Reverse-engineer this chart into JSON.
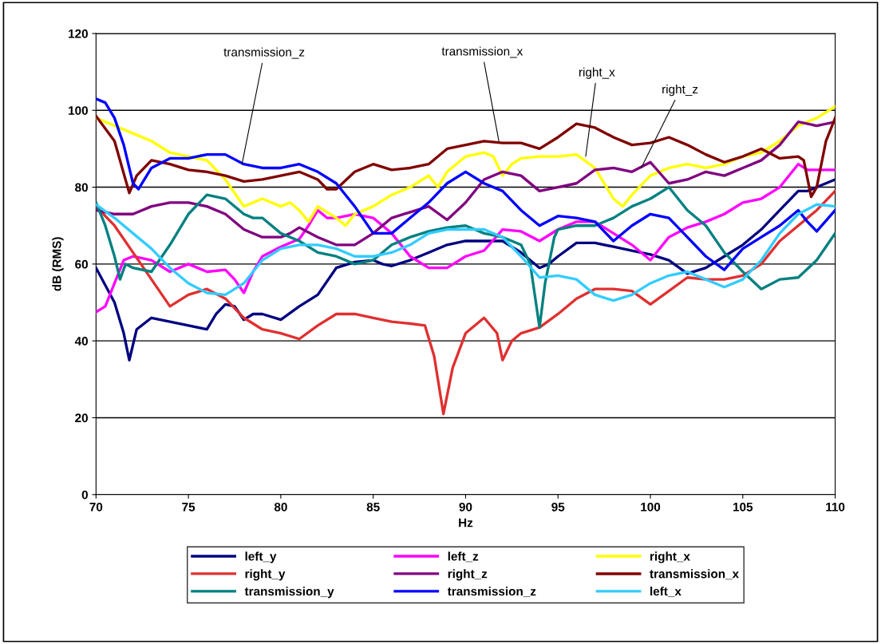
{
  "chart_data": {
    "type": "line",
    "xlabel": "Hz",
    "ylabel": "dB (RMS)",
    "xlim": [
      70,
      110
    ],
    "xticks": [
      70,
      75,
      80,
      85,
      90,
      95,
      100,
      105,
      110
    ],
    "ylim": [
      0,
      120
    ],
    "yticks": [
      0,
      20,
      40,
      60,
      80,
      100,
      120
    ],
    "grid": "y",
    "legend": "bottom",
    "marker": "none",
    "line_style": "solid",
    "annotations": [
      {
        "text": "transmission_z",
        "x": 77.9,
        "y": 86
      },
      {
        "text": "transmission_x",
        "x": 91.8,
        "y": 92
      },
      {
        "text": "right_x",
        "x": 96.5,
        "y": 88
      },
      {
        "text": "right_z",
        "x": 99.5,
        "y": 85
      }
    ],
    "series": [
      {
        "name": "left_y",
        "color": "#000080",
        "x": [
          70,
          71,
          71.5,
          71.8,
          72.2,
          73,
          74,
          75,
          76,
          76.5,
          77,
          77.5,
          78,
          78.5,
          79,
          80,
          81,
          82,
          83,
          84,
          85,
          85.5,
          86,
          87,
          88,
          89,
          90,
          91,
          92,
          93,
          94,
          94.5,
          95,
          96,
          97,
          98,
          99,
          100,
          101,
          102,
          103,
          104,
          105,
          106,
          107,
          108,
          108.5,
          109,
          110
        ],
        "values": [
          59,
          50,
          42,
          35,
          43,
          46,
          45,
          44,
          43,
          47,
          49.5,
          49,
          45.5,
          47,
          47,
          45.5,
          49,
          52,
          59,
          60.5,
          61,
          60,
          59.5,
          61,
          63,
          65,
          66,
          66,
          66,
          63,
          59,
          60,
          62,
          65.5,
          65.5,
          64.5,
          63.5,
          62.5,
          61,
          57.5,
          59,
          62,
          65,
          69,
          74,
          79,
          79,
          80,
          82
        ]
      },
      {
        "name": "left_z",
        "color": "#ff00ff",
        "x": [
          70,
          70.5,
          71,
          71.5,
          72,
          73,
          74,
          75,
          76,
          77,
          77.5,
          78,
          78.5,
          79,
          80,
          81,
          81.5,
          82,
          82.5,
          83,
          84,
          85,
          86,
          87,
          88,
          89,
          90,
          91,
          92,
          93,
          94,
          95,
          96,
          97,
          98,
          99,
          100,
          101,
          102,
          103,
          104,
          105,
          106,
          107,
          108,
          108.5,
          110
        ],
        "values": [
          47.5,
          49,
          55,
          61,
          62,
          61,
          58,
          60,
          58,
          58.5,
          56,
          52.5,
          58,
          62,
          64.5,
          66.5,
          70,
          74,
          72,
          72,
          73,
          72,
          68,
          62,
          59,
          59,
          62,
          63.5,
          69,
          68.5,
          66,
          69,
          71,
          71,
          68,
          65,
          61,
          67,
          69.5,
          71,
          73,
          76,
          77,
          80,
          86,
          84.5,
          84.5
        ]
      },
      {
        "name": "right_x",
        "color": "#ffff00",
        "x": [
          70,
          71,
          72,
          73,
          74,
          75,
          76,
          77,
          78,
          79,
          80,
          80.5,
          81,
          81.5,
          82,
          83,
          83.5,
          84,
          85,
          86,
          87,
          88,
          88.5,
          89,
          90,
          91,
          91.5,
          92,
          92.5,
          93,
          94,
          95,
          96,
          97,
          98,
          98.5,
          99,
          100,
          101,
          102,
          103,
          104,
          105,
          106,
          107,
          108,
          109,
          110
        ],
        "values": [
          98,
          96,
          94,
          92,
          89,
          88,
          87,
          82,
          75,
          77,
          75,
          76,
          74,
          71,
          75,
          72,
          70,
          73,
          75,
          78,
          80,
          83,
          80,
          84,
          88,
          89,
          88,
          83,
          86,
          87.5,
          88,
          88,
          88.5,
          85,
          77,
          75,
          78,
          83,
          85,
          86,
          85,
          86,
          88,
          89,
          92,
          96,
          98,
          101
        ]
      },
      {
        "name": "right_y",
        "color": "#e03030",
        "x": [
          70,
          71,
          72,
          73,
          74,
          75,
          76,
          77,
          78,
          79,
          80,
          81,
          82,
          83,
          84,
          85,
          86,
          87,
          87.8,
          88.3,
          88.8,
          89.3,
          90,
          91,
          91.7,
          92,
          92.5,
          93,
          94,
          95,
          96,
          97,
          98,
          99,
          100,
          101,
          102,
          103,
          104,
          105,
          106,
          107,
          108,
          109,
          110
        ],
        "values": [
          75,
          70,
          63,
          56,
          49,
          52,
          53.5,
          51,
          46,
          43,
          42,
          40.5,
          44,
          47,
          47,
          46,
          45,
          44.5,
          44,
          36,
          21,
          33,
          42,
          46,
          42,
          35,
          40,
          42,
          43.5,
          47,
          51,
          53.5,
          53.5,
          53,
          49.5,
          53,
          56.5,
          56,
          56,
          57,
          60,
          66,
          70,
          74,
          79
        ]
      },
      {
        "name": "right_z",
        "color": "#800080",
        "x": [
          70,
          71,
          72,
          73,
          74,
          75,
          76,
          77,
          78,
          79,
          80,
          80.5,
          81,
          82,
          83,
          84,
          85,
          86,
          87,
          88,
          89,
          90,
          91,
          92,
          93,
          94,
          95,
          96,
          97,
          98,
          99,
          100,
          101,
          102,
          103,
          104,
          105,
          106,
          107,
          108,
          109,
          110
        ],
        "values": [
          74,
          73,
          73,
          75,
          76,
          76,
          75,
          73,
          69,
          67,
          67,
          68,
          69.5,
          67,
          65,
          65,
          68,
          72,
          73.5,
          75,
          71.5,
          76,
          82,
          84,
          83,
          79,
          80,
          81,
          84.5,
          85,
          84,
          86.5,
          81,
          82,
          84,
          83,
          85,
          87,
          91,
          97,
          96,
          97
        ]
      },
      {
        "name": "transmission_x",
        "color": "#800000",
        "x": [
          70,
          71,
          71.8,
          72.2,
          73,
          74,
          75,
          76,
          77,
          78,
          79,
          80,
          81,
          82,
          82.5,
          83,
          84,
          85,
          86,
          87,
          88,
          89,
          90,
          91,
          92,
          93,
          94,
          95,
          96,
          97,
          98,
          99,
          100,
          101,
          102,
          103,
          104,
          105,
          106,
          107,
          108,
          108.3,
          108.7,
          109,
          109.5,
          110
        ],
        "values": [
          98.5,
          92,
          78.5,
          83,
          87,
          86,
          84.5,
          84,
          83,
          81.5,
          82,
          83,
          84,
          82,
          79.5,
          79.5,
          84,
          86,
          84.5,
          85,
          86,
          90,
          91,
          92,
          91.5,
          91.5,
          90,
          93,
          96.5,
          95.5,
          93,
          91,
          91.5,
          93,
          91,
          88.5,
          86.5,
          88,
          90,
          87.5,
          88,
          87,
          77.5,
          80,
          92,
          98
        ]
      },
      {
        "name": "transmission_y",
        "color": "#008080",
        "x": [
          70,
          70.5,
          71,
          71.3,
          71.6,
          72,
          73,
          74,
          75,
          76,
          77,
          78,
          78.5,
          79,
          80,
          81,
          82,
          83,
          84,
          85,
          86,
          87,
          88,
          89,
          90,
          91,
          92,
          93,
          93.5,
          94,
          94.3,
          94.8,
          95,
          96,
          97,
          98,
          99,
          100,
          101,
          102,
          103,
          104,
          105,
          106,
          107,
          108,
          109,
          110
        ],
        "values": [
          76,
          70,
          62,
          56,
          60,
          59,
          58,
          65,
          73,
          78,
          77,
          73,
          72,
          72,
          68,
          66,
          63,
          62,
          60,
          61,
          65,
          67,
          68.5,
          69.5,
          70,
          68,
          67,
          65,
          60,
          43.5,
          55,
          67,
          69,
          70,
          70,
          72,
          75,
          77,
          80,
          74,
          70,
          63,
          58,
          53.5,
          56,
          56.5,
          61,
          68
        ]
      },
      {
        "name": "transmission_z",
        "color": "#0000ff",
        "x": [
          70,
          70.5,
          71,
          71.5,
          72,
          72.3,
          73,
          74,
          75,
          76,
          77,
          78,
          79,
          80,
          81,
          82,
          83,
          84,
          85,
          86,
          87,
          88,
          89,
          90,
          91,
          92,
          93,
          94,
          95,
          96,
          97,
          98,
          99,
          100,
          101,
          102,
          103,
          104,
          105,
          106,
          107,
          108,
          108.5,
          109,
          110
        ],
        "values": [
          103,
          102,
          98,
          91,
          81,
          79.5,
          85,
          87.5,
          87.5,
          88.5,
          88.5,
          86,
          85,
          85,
          86,
          84,
          81,
          75,
          68,
          68,
          72,
          76,
          81,
          84,
          81,
          79,
          74,
          70,
          72.5,
          72,
          71,
          66,
          70,
          73,
          72,
          67,
          62,
          58.5,
          64,
          67,
          70,
          74,
          71,
          68.5,
          74
        ]
      },
      {
        "name": "left_x",
        "color": "#33ccff",
        "x": [
          70,
          71,
          72,
          73,
          74,
          75,
          76,
          77,
          78,
          79,
          80,
          81,
          82,
          83,
          84,
          85,
          86,
          87,
          88,
          89,
          90,
          91,
          92,
          93,
          94,
          95,
          96,
          97,
          98,
          99,
          100,
          101,
          102,
          103,
          104,
          105,
          106,
          107,
          108,
          109,
          110
        ],
        "values": [
          75.5,
          72,
          68,
          64,
          59,
          55,
          52.5,
          52,
          55,
          61,
          64,
          65,
          65,
          64,
          62,
          62,
          63,
          65,
          68,
          69,
          69,
          69,
          67,
          62,
          56.5,
          57,
          56,
          52,
          50.5,
          52,
          55,
          57,
          58,
          56,
          54,
          56,
          61,
          68,
          73,
          75.5,
          75
        ]
      }
    ]
  }
}
